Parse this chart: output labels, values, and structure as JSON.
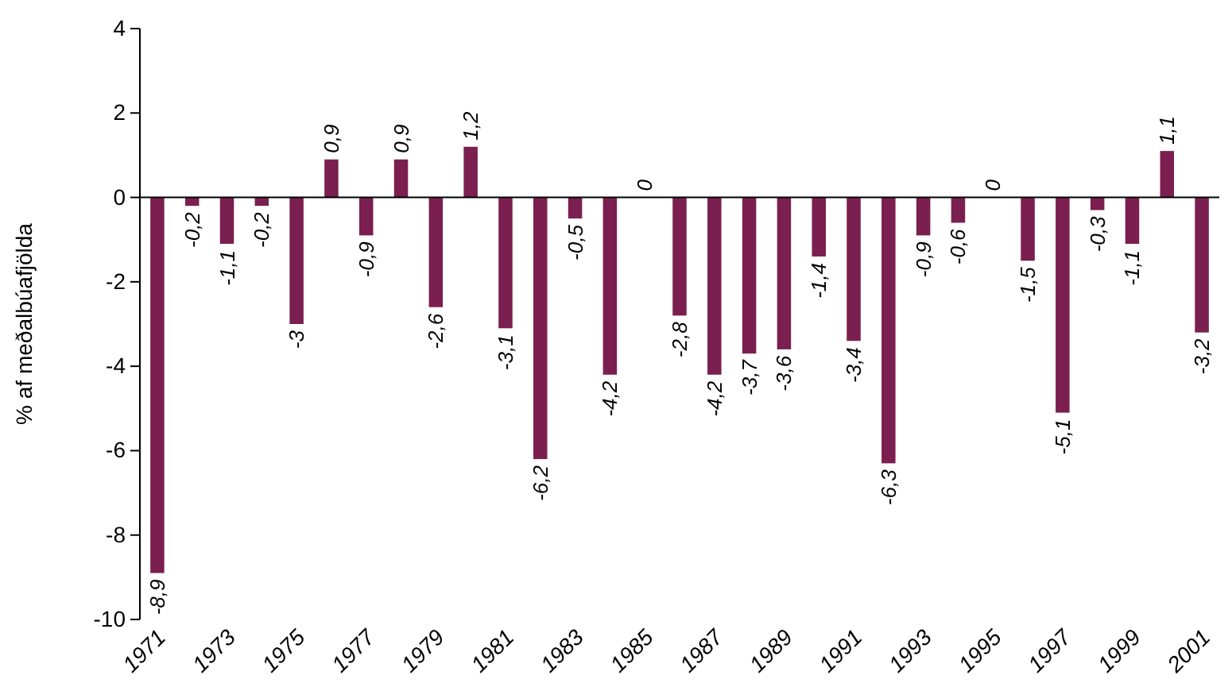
{
  "chart_data": {
    "type": "bar",
    "ylabel": "% af meðalbúafjölda",
    "categories": [
      "1971",
      null,
      "1973",
      null,
      "1975",
      null,
      "1977",
      null,
      "1979",
      null,
      "1981",
      null,
      "1983",
      null,
      "1985",
      null,
      "1987",
      null,
      "1989",
      null,
      "1991",
      null,
      "1993",
      null,
      "1995",
      null,
      "1997",
      null,
      "1999",
      null,
      "2001"
    ],
    "values": [
      -8.9,
      -0.2,
      -1.1,
      -0.2,
      -3,
      0.9,
      -0.9,
      0.9,
      -2.6,
      1.2,
      -3.1,
      -6.2,
      -0.5,
      -4.2,
      0,
      -2.8,
      -4.2,
      -3.7,
      -3.6,
      -1.4,
      -3.4,
      -6.3,
      -0.9,
      -0.6,
      0,
      -1.5,
      -5.1,
      -0.3,
      -1.1,
      1.1,
      -3.2
    ],
    "value_labels": [
      "-8,9",
      "-0,2",
      "-1,1",
      "-0,2",
      "-3",
      "0,9",
      "-0,9",
      "0,9",
      "-2,6",
      "1,2",
      "-3,1",
      "-6,2",
      "-0,5",
      "-4,2",
      "0",
      "-2,8",
      "-4,2",
      "-3,7",
      "-3,6",
      "-1,4",
      "-3,4",
      "-6,3",
      "-0,9",
      "-0,6",
      "0",
      "-1,5",
      "-5,1",
      "-0,3",
      "-1,1",
      "1,1",
      "-3,2"
    ],
    "color": "#7a1f4f",
    "ylim": [
      -10,
      4
    ],
    "yticks": [
      -10,
      -8,
      -6,
      -4,
      -2,
      0,
      2,
      4
    ]
  }
}
